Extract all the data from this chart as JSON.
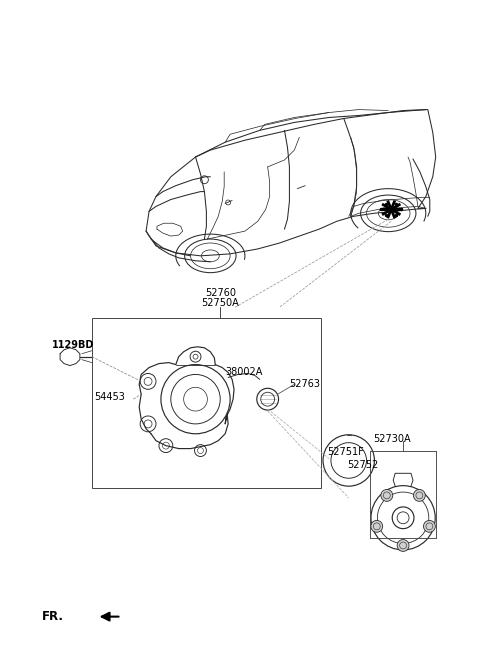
{
  "background_color": "#ffffff",
  "fig_width": 4.8,
  "fig_height": 6.57,
  "dpi": 100,
  "line_color": "#2a2a2a",
  "light_line_color": "#555555",
  "label_52760": "52760",
  "label_52750A": "52750A",
  "label_1129BD": "1129BD",
  "label_54453": "54453",
  "label_38002A": "38002A",
  "label_52763": "52763",
  "label_52730A": "52730A",
  "label_52751F": "52751F",
  "label_52752": "52752",
  "label_FR": "FR.",
  "font_size_labels": 7.0,
  "font_size_fr": 8.5
}
